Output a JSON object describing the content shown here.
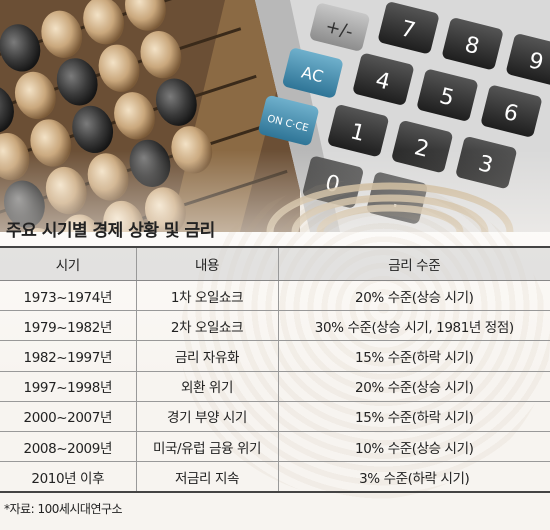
{
  "title": "주요 시기별 경제 상황 및 금리",
  "table": {
    "headers": [
      "시기",
      "내용",
      "금리 수준"
    ],
    "rows": [
      [
        "1973~1974년",
        "1차 오일쇼크",
        "20% 수준(상승 시기)"
      ],
      [
        "1979~1982년",
        "2차 오일쇼크",
        "30% 수준(상승 시기, 1981년 정점)"
      ],
      [
        "1982~1997년",
        "금리 자유화",
        "15% 수준(하락 시기)"
      ],
      [
        "1997~1998년",
        "외환 위기",
        "20% 수준(상승 시기)"
      ],
      [
        "2000~2007년",
        "경기 부양 시기",
        "15% 수준(하락 시기)"
      ],
      [
        "2008~2009년",
        "미국/유럽 금융 위기",
        "10% 수준(상승 시기)"
      ],
      [
        "2010년 이후",
        "저금리 지속",
        "3% 수준(하락 시기)"
      ]
    ]
  },
  "source": "*자료: 100세시대연구소",
  "photo": {
    "calculator_keys": [
      "7",
      "8",
      "9",
      "4",
      "5",
      "6",
      "1",
      "2",
      "3",
      "0",
      "+/-",
      "AC",
      "ON C·CE",
      "."
    ]
  }
}
